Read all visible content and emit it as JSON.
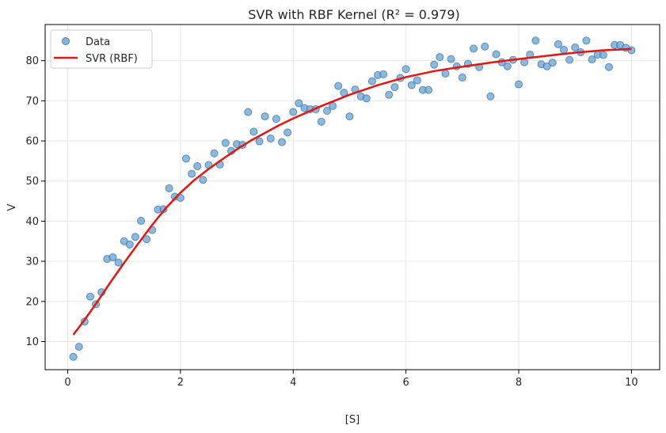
{
  "chart_data": {
    "type": "scatter",
    "title": "SVR with RBF Kernel (R² = 0.979)",
    "xlabel": "[S]",
    "ylabel": "V",
    "xlim": [
      -0.4,
      10.5
    ],
    "ylim": [
      3,
      89
    ],
    "x_ticks": [
      0,
      2,
      4,
      6,
      8,
      10
    ],
    "y_ticks": [
      10,
      20,
      30,
      40,
      50,
      60,
      70,
      80
    ],
    "grid": true,
    "legend_position": "top-left",
    "series": [
      {
        "name": "Data",
        "kind": "scatter",
        "color": "#6fa8d6",
        "points": [
          [
            0.1,
            6.2
          ],
          [
            0.2,
            8.7
          ],
          [
            0.3,
            15.0
          ],
          [
            0.4,
            21.2
          ],
          [
            0.5,
            19.3
          ],
          [
            0.6,
            22.3
          ],
          [
            0.7,
            30.6
          ],
          [
            0.8,
            31.0
          ],
          [
            0.9,
            29.7
          ],
          [
            1.0,
            35.0
          ],
          [
            1.1,
            34.2
          ],
          [
            1.2,
            36.1
          ],
          [
            1.3,
            40.1
          ],
          [
            1.4,
            35.5
          ],
          [
            1.5,
            37.8
          ],
          [
            1.6,
            42.9
          ],
          [
            1.7,
            43.0
          ],
          [
            1.8,
            48.2
          ],
          [
            1.9,
            46.1
          ],
          [
            2.0,
            45.8
          ],
          [
            2.1,
            55.6
          ],
          [
            2.2,
            51.8
          ],
          [
            2.3,
            53.7
          ],
          [
            2.4,
            50.3
          ],
          [
            2.5,
            54.0
          ],
          [
            2.6,
            56.9
          ],
          [
            2.7,
            54.1
          ],
          [
            2.8,
            59.5
          ],
          [
            2.9,
            57.5
          ],
          [
            3.0,
            59.2
          ],
          [
            3.1,
            59.0
          ],
          [
            3.2,
            67.2
          ],
          [
            3.3,
            62.3
          ],
          [
            3.4,
            59.9
          ],
          [
            3.5,
            66.1
          ],
          [
            3.6,
            60.6
          ],
          [
            3.7,
            65.5
          ],
          [
            3.8,
            59.7
          ],
          [
            3.9,
            62.1
          ],
          [
            4.0,
            67.2
          ],
          [
            4.1,
            69.4
          ],
          [
            4.2,
            68.2
          ],
          [
            4.3,
            67.9
          ],
          [
            4.4,
            67.9
          ],
          [
            4.5,
            64.8
          ],
          [
            4.6,
            67.5
          ],
          [
            4.7,
            68.7
          ],
          [
            4.8,
            73.7
          ],
          [
            4.9,
            72.0
          ],
          [
            5.0,
            66.1
          ],
          [
            5.1,
            72.8
          ],
          [
            5.2,
            71.1
          ],
          [
            5.3,
            70.6
          ],
          [
            5.4,
            74.9
          ],
          [
            5.5,
            76.4
          ],
          [
            5.6,
            76.6
          ],
          [
            5.7,
            71.5
          ],
          [
            5.8,
            73.4
          ],
          [
            5.9,
            75.7
          ],
          [
            6.0,
            77.9
          ],
          [
            6.1,
            73.9
          ],
          [
            6.2,
            75.1
          ],
          [
            6.3,
            72.7
          ],
          [
            6.4,
            72.7
          ],
          [
            6.5,
            79.0
          ],
          [
            6.6,
            80.9
          ],
          [
            6.7,
            76.8
          ],
          [
            6.8,
            80.4
          ],
          [
            6.9,
            78.6
          ],
          [
            7.0,
            75.8
          ],
          [
            7.1,
            79.2
          ],
          [
            7.2,
            83.0
          ],
          [
            7.3,
            78.4
          ],
          [
            7.4,
            83.5
          ],
          [
            7.5,
            71.1
          ],
          [
            7.6,
            81.6
          ],
          [
            7.7,
            79.6
          ],
          [
            7.8,
            78.6
          ],
          [
            7.9,
            80.2
          ],
          [
            8.0,
            74.1
          ],
          [
            8.1,
            79.6
          ],
          [
            8.2,
            81.5
          ],
          [
            8.3,
            85.0
          ],
          [
            8.4,
            79.1
          ],
          [
            8.5,
            78.6
          ],
          [
            8.6,
            79.5
          ],
          [
            8.7,
            84.1
          ],
          [
            8.8,
            82.7
          ],
          [
            8.9,
            80.2
          ],
          [
            9.0,
            83.3
          ],
          [
            9.1,
            82.1
          ],
          [
            9.2,
            85.0
          ],
          [
            9.3,
            80.3
          ],
          [
            9.4,
            81.5
          ],
          [
            9.5,
            81.4
          ],
          [
            9.6,
            78.4
          ],
          [
            9.7,
            83.9
          ],
          [
            9.8,
            83.9
          ],
          [
            9.9,
            83.2
          ],
          [
            10.0,
            82.6
          ]
        ]
      },
      {
        "name": "SVR (RBF)",
        "kind": "line",
        "color": "#e8140f",
        "points": [
          [
            0.1,
            11.7
          ],
          [
            0.3,
            15.4
          ],
          [
            0.5,
            19.4
          ],
          [
            0.75,
            24.6
          ],
          [
            1.0,
            29.6
          ],
          [
            1.25,
            34.4
          ],
          [
            1.5,
            39.1
          ],
          [
            1.75,
            43.4
          ],
          [
            2.0,
            47.1
          ],
          [
            2.25,
            50.3
          ],
          [
            2.5,
            53.0
          ],
          [
            2.75,
            55.5
          ],
          [
            3.0,
            57.9
          ],
          [
            3.25,
            60.1
          ],
          [
            3.5,
            62.0
          ],
          [
            3.75,
            63.9
          ],
          [
            4.0,
            65.6
          ],
          [
            4.5,
            68.7
          ],
          [
            5.0,
            71.5
          ],
          [
            5.5,
            73.9
          ],
          [
            6.0,
            75.9
          ],
          [
            6.5,
            77.4
          ],
          [
            7.0,
            78.5
          ],
          [
            7.5,
            79.5
          ],
          [
            8.0,
            80.4
          ],
          [
            8.5,
            81.2
          ],
          [
            9.0,
            82.0
          ],
          [
            9.5,
            82.6
          ],
          [
            10.0,
            82.9
          ]
        ]
      }
    ]
  }
}
